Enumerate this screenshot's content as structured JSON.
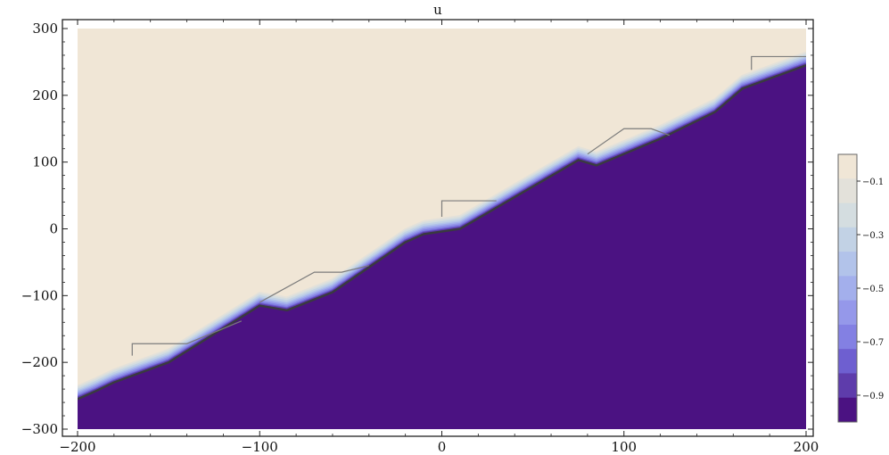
{
  "chart_data": {
    "type": "heatmap",
    "subtype": "contour",
    "title": "u",
    "xlabel": "",
    "ylabel": "",
    "xlim": [
      -200,
      200
    ],
    "ylim": [
      -300,
      300
    ],
    "x_ticks": [
      -200,
      -100,
      0,
      100,
      200
    ],
    "x_tick_labels": [
      "−200",
      "−100",
      "0",
      "100",
      "200"
    ],
    "y_ticks": [
      300,
      200,
      100,
      0,
      -100,
      -200,
      -300
    ],
    "y_tick_labels": [
      "300",
      "200",
      "100",
      "0",
      "−100",
      "−200",
      "−300"
    ],
    "regions": {
      "upper_value": -0.05,
      "lower_value": -1.0,
      "upper_color": "#f0e6d6",
      "lower_color": "#4b1282"
    },
    "front_boundary": [
      [
        -200,
        -255
      ],
      [
        -190,
        -243
      ],
      [
        -180,
        -230
      ],
      [
        -160,
        -210
      ],
      [
        -150,
        -200
      ],
      [
        -100,
        -115
      ],
      [
        -85,
        -122
      ],
      [
        -60,
        -95
      ],
      [
        -20,
        -20
      ],
      [
        -10,
        -8
      ],
      [
        10,
        0
      ],
      [
        75,
        103
      ],
      [
        85,
        95
      ],
      [
        120,
        135
      ],
      [
        150,
        175
      ],
      [
        165,
        210
      ],
      [
        200,
        245
      ]
    ],
    "step_outlines": [
      [
        [
          -170,
          -190
        ],
        [
          -170,
          -172
        ],
        [
          -140,
          -172
        ],
        [
          -110,
          -138
        ]
      ],
      [
        [
          0,
          18
        ],
        [
          0,
          42
        ],
        [
          30,
          42
        ]
      ],
      [
        [
          170,
          238
        ],
        [
          170,
          258
        ],
        [
          200,
          258
        ]
      ],
      [
        [
          -100,
          -110
        ],
        [
          -70,
          -65
        ],
        [
          -55,
          -65
        ],
        [
          -40,
          -55
        ]
      ],
      [
        [
          80,
          112
        ],
        [
          100,
          150
        ],
        [
          115,
          150
        ],
        [
          125,
          140
        ]
      ]
    ],
    "colorbar": {
      "range": [
        -1.0,
        0.0
      ],
      "levels": 11,
      "tick_values": [
        -0.1,
        -0.3,
        -0.5,
        -0.7,
        -0.9
      ],
      "tick_labels": [
        "−0.1",
        "−0.3",
        "−0.5",
        "−0.7",
        "−0.9"
      ],
      "colors": [
        "#f0e6d6",
        "#e3e1da",
        "#d4dde0",
        "#c2d2e5",
        "#b2c3ea",
        "#a3afec",
        "#9598ea",
        "#8380e3",
        "#6e5fd0",
        "#5e3cab",
        "#4b1282"
      ]
    }
  }
}
